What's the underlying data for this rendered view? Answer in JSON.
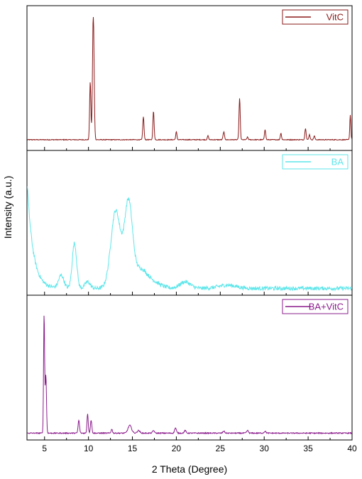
{
  "chart_data": {
    "type": "line",
    "xlabel": "2 Theta (Degree)",
    "ylabel": "Intensity (a.u.)",
    "xlim": [
      3,
      40
    ],
    "x_ticks": [
      5,
      10,
      15,
      20,
      25,
      30,
      35,
      40
    ],
    "y_ticks_shown": false,
    "layout": "three vertically stacked panels sharing the x axis",
    "legend_position": "top-right of each panel",
    "series": [
      {
        "name": "VitC",
        "color": "#8B1A1A",
        "baseline": 0.05,
        "noise": 0.003,
        "peaks": [
          {
            "x": 10.2,
            "h": 0.45,
            "w": 0.07
          },
          {
            "x": 10.55,
            "h": 0.98,
            "w": 0.09
          },
          {
            "x": 16.25,
            "h": 0.18,
            "w": 0.07
          },
          {
            "x": 17.4,
            "h": 0.22,
            "w": 0.07
          },
          {
            "x": 20.0,
            "h": 0.06,
            "w": 0.07
          },
          {
            "x": 23.6,
            "h": 0.03,
            "w": 0.07
          },
          {
            "x": 25.4,
            "h": 0.06,
            "w": 0.08
          },
          {
            "x": 27.2,
            "h": 0.32,
            "w": 0.07
          },
          {
            "x": 28.1,
            "h": 0.02,
            "w": 0.07
          },
          {
            "x": 30.1,
            "h": 0.08,
            "w": 0.07
          },
          {
            "x": 31.9,
            "h": 0.05,
            "w": 0.07
          },
          {
            "x": 34.7,
            "h": 0.09,
            "w": 0.07
          },
          {
            "x": 35.15,
            "h": 0.04,
            "w": 0.07
          },
          {
            "x": 35.7,
            "h": 0.03,
            "w": 0.07
          },
          {
            "x": 39.8,
            "h": 0.19,
            "w": 0.06
          }
        ]
      },
      {
        "name": "BA",
        "color": "#5EE6EA",
        "baseline": 0.02,
        "noise": 0.015,
        "decay": {
          "amp": 0.85,
          "rate": 1.5
        },
        "peaks": [
          {
            "x": 6.9,
            "h": 0.1,
            "w": 0.3
          },
          {
            "x": 8.4,
            "h": 0.35,
            "w": 0.25
          },
          {
            "x": 9.9,
            "h": 0.05,
            "w": 0.3
          },
          {
            "x": 13.1,
            "h": 0.6,
            "w": 0.55
          },
          {
            "x": 14.55,
            "h": 0.65,
            "w": 0.45
          },
          {
            "x": 15.8,
            "h": 0.12,
            "w": 0.7
          },
          {
            "x": 17.0,
            "h": 0.06,
            "w": 1.0
          },
          {
            "x": 21.0,
            "h": 0.05,
            "w": 0.6
          },
          {
            "x": 25.8,
            "h": 0.025,
            "w": 1.0
          }
        ]
      },
      {
        "name": "BA+VitC",
        "color": "#8B1C8C",
        "baseline": 0.02,
        "noise": 0.004,
        "peaks": [
          {
            "x": 4.95,
            "h": 0.92,
            "w": 0.06
          },
          {
            "x": 5.15,
            "h": 0.45,
            "w": 0.07
          },
          {
            "x": 8.9,
            "h": 0.1,
            "w": 0.08
          },
          {
            "x": 9.9,
            "h": 0.15,
            "w": 0.07
          },
          {
            "x": 10.3,
            "h": 0.1,
            "w": 0.08
          },
          {
            "x": 12.65,
            "h": 0.03,
            "w": 0.08
          },
          {
            "x": 14.7,
            "h": 0.06,
            "w": 0.2
          },
          {
            "x": 15.7,
            "h": 0.02,
            "w": 0.15
          },
          {
            "x": 17.4,
            "h": 0.02,
            "w": 0.1
          },
          {
            "x": 19.9,
            "h": 0.04,
            "w": 0.1
          },
          {
            "x": 21.0,
            "h": 0.02,
            "w": 0.1
          },
          {
            "x": 25.4,
            "h": 0.015,
            "w": 0.1
          },
          {
            "x": 28.1,
            "h": 0.02,
            "w": 0.1
          },
          {
            "x": 30.1,
            "h": 0.015,
            "w": 0.1
          }
        ]
      }
    ]
  }
}
